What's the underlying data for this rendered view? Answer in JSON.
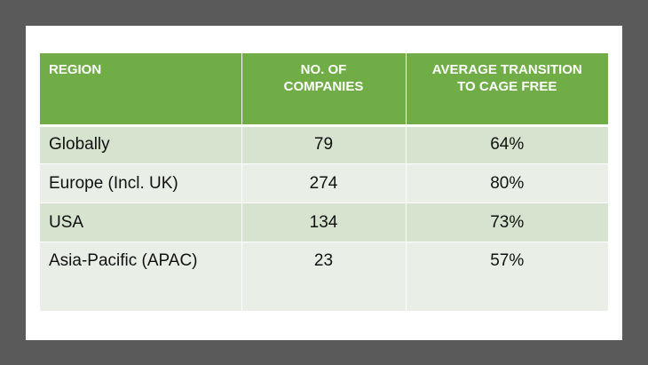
{
  "table": {
    "headers": [
      "REGION",
      "NO. OF\nCOMPANIES",
      "AVERAGE TRANSITION\nTO CAGE FREE"
    ],
    "header_line1": [
      "REGION",
      "NO. OF",
      "AVERAGE TRANSITION"
    ],
    "header_line2": [
      "",
      "COMPANIES",
      "TO CAGE FREE"
    ],
    "rows": [
      {
        "region": "Globally",
        "companies": "79",
        "average": "64%"
      },
      {
        "region": "Europe (Incl. UK)",
        "companies": "274",
        "average": "80%"
      },
      {
        "region": "USA",
        "companies": "134",
        "average": "73%"
      },
      {
        "region": "Asia-Pacific (APAC)",
        "companies": "23",
        "average": "57%"
      }
    ]
  },
  "colors": {
    "header_bg": "#70ad47",
    "row_band_dark": "#d5e3cf",
    "row_band_light": "#e9efe7",
    "frame": "#5a5a5a"
  }
}
